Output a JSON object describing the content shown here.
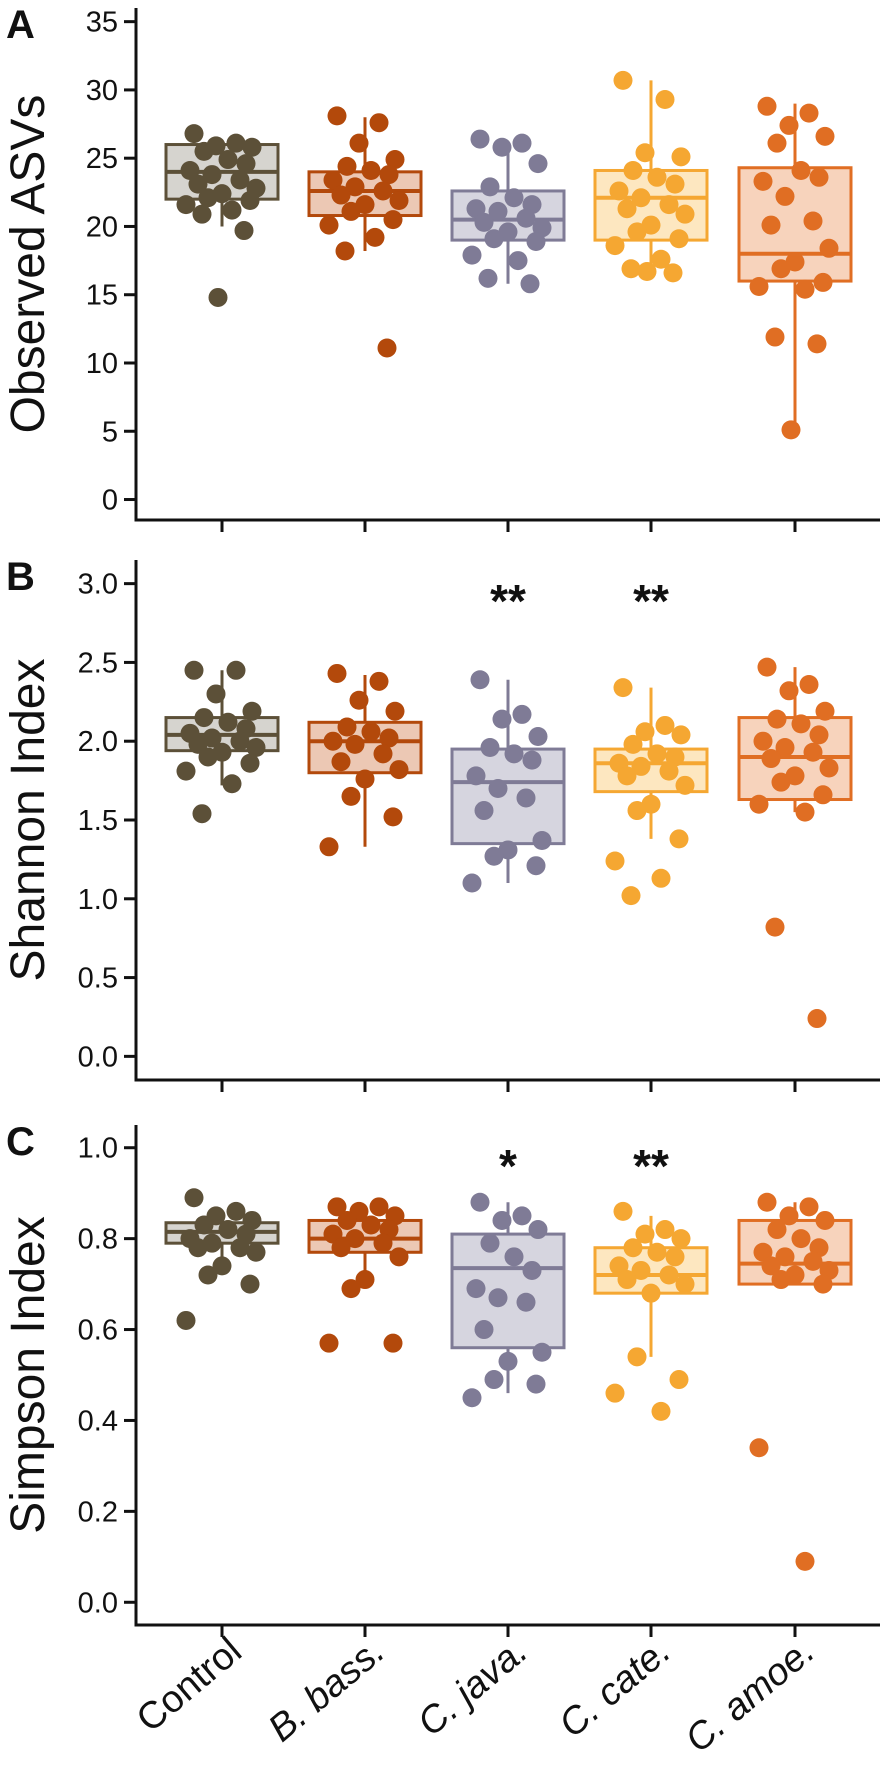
{
  "categories": [
    "Control",
    "B. bass.",
    "C. java.",
    "C. cate.",
    "C. amoe."
  ],
  "italic_categories": [
    false,
    true,
    true,
    true,
    true
  ],
  "colors": [
    "#5c5038",
    "#b3490b",
    "#7f7b96",
    "#f5a732",
    "#e06e23"
  ],
  "fills": [
    "#d6d4cf",
    "#ecc8b4",
    "#d6d5df",
    "#fde7c0",
    "#f7d3bc"
  ],
  "chart_data": [
    {
      "type": "box",
      "panel": "A",
      "ylabel": "Observed ASVs",
      "ylim": [
        -1.5,
        36
      ],
      "yticks": [
        0,
        5,
        10,
        15,
        20,
        25,
        30,
        35
      ],
      "ytick_labels": [
        "0",
        "5",
        "10",
        "15",
        "20",
        "25",
        "30",
        "35"
      ],
      "significance": [
        "",
        "",
        "",
        "",
        ""
      ],
      "boxes": [
        {
          "q1": 22,
          "median": 24,
          "q3": 26,
          "whisker_low": 20,
          "whisker_high": 26
        },
        {
          "q1": 20.8,
          "median": 22.6,
          "q3": 24,
          "whisker_low": 18.2,
          "whisker_high": 28
        },
        {
          "q1": 19,
          "median": 20.5,
          "q3": 22.6,
          "whisker_low": 15.8,
          "whisker_high": 26.2
        },
        {
          "q1": 19,
          "median": 22.1,
          "q3": 24.1,
          "whisker_low": 16.7,
          "whisker_high": 30.7
        },
        {
          "q1": 16,
          "median": 18,
          "q3": 24.3,
          "whisker_low": 5,
          "whisker_high": 29
        }
      ],
      "points": [
        [
          26.8,
          26.1,
          25.9,
          25.8,
          25.5,
          24.9,
          24.6,
          24.1,
          23.8,
          23.4,
          23.1,
          22.8,
          22.4,
          22.1,
          21.9,
          21.6,
          21.2,
          20.9,
          19.7,
          14.8
        ],
        [
          28.1,
          27.6,
          26.1,
          24.9,
          24.4,
          24.1,
          23.8,
          23.4,
          22.9,
          22.6,
          22.3,
          21.9,
          21.6,
          21.1,
          20.5,
          20.1,
          19.2,
          18.2,
          11.1
        ],
        [
          26.4,
          26.1,
          25.8,
          24.6,
          22.9,
          22.1,
          21.6,
          21.3,
          21.1,
          20.6,
          20.3,
          19.9,
          19.6,
          19.1,
          18.9,
          17.9,
          17.5,
          16.2,
          15.8
        ],
        [
          30.7,
          29.3,
          25.4,
          25.1,
          24.1,
          23.6,
          23.1,
          22.6,
          22.1,
          21.6,
          21.3,
          20.9,
          20.1,
          19.6,
          19.1,
          18.6,
          17.6,
          16.9,
          16.6,
          16.7
        ],
        [
          28.8,
          28.3,
          27.4,
          26.6,
          26.1,
          24.1,
          23.6,
          23.3,
          22.2,
          20.4,
          20.1,
          18.4,
          17.4,
          16.9,
          15.9,
          15.6,
          15.4,
          11.9,
          11.4,
          5.1
        ]
      ]
    },
    {
      "type": "box",
      "panel": "B",
      "ylabel": "Shannon Index",
      "ylim": [
        -0.15,
        3.15
      ],
      "yticks": [
        0,
        0.5,
        1,
        1.5,
        2,
        2.5,
        3
      ],
      "ytick_labels": [
        "0.0",
        "0.5",
        "1.0",
        "1.5",
        "2.0",
        "2.5",
        "3.0"
      ],
      "significance": [
        "",
        "",
        "**",
        "**",
        ""
      ],
      "boxes": [
        {
          "q1": 1.94,
          "median": 2.04,
          "q3": 2.15,
          "whisker_low": 1.72,
          "whisker_high": 2.45
        },
        {
          "q1": 1.8,
          "median": 2,
          "q3": 2.12,
          "whisker_low": 1.33,
          "whisker_high": 2.42
        },
        {
          "q1": 1.35,
          "median": 1.74,
          "q3": 1.95,
          "whisker_low": 1.1,
          "whisker_high": 2.39
        },
        {
          "q1": 1.68,
          "median": 1.86,
          "q3": 1.95,
          "whisker_low": 1.38,
          "whisker_high": 2.34
        },
        {
          "q1": 1.63,
          "median": 1.9,
          "q3": 2.15,
          "whisker_low": 1.55,
          "whisker_high": 2.47
        }
      ],
      "points": [
        [
          2.45,
          2.45,
          2.3,
          2.19,
          2.15,
          2.12,
          2.08,
          2.05,
          2.02,
          2,
          1.98,
          1.96,
          1.93,
          1.9,
          1.86,
          1.81,
          1.73,
          1.54
        ],
        [
          2.43,
          2.38,
          2.26,
          2.19,
          2.09,
          2.06,
          2.02,
          2,
          1.98,
          1.92,
          1.87,
          1.82,
          1.76,
          1.65,
          1.52,
          1.33
        ],
        [
          2.39,
          2.17,
          2.14,
          2.03,
          1.96,
          1.92,
          1.88,
          1.78,
          1.7,
          1.64,
          1.56,
          1.37,
          1.31,
          1.27,
          1.21,
          1.1
        ],
        [
          2.34,
          2.1,
          2.06,
          2.04,
          1.98,
          1.92,
          1.9,
          1.86,
          1.84,
          1.81,
          1.78,
          1.72,
          1.6,
          1.56,
          1.38,
          1.24,
          1.13,
          1.02
        ],
        [
          2.47,
          2.36,
          2.32,
          2.19,
          2.14,
          2.11,
          2.04,
          2,
          1.96,
          1.93,
          1.89,
          1.83,
          1.78,
          1.74,
          1.66,
          1.6,
          1.55,
          0.82,
          0.24
        ]
      ]
    },
    {
      "type": "box",
      "panel": "C",
      "ylabel": "Simpson Index",
      "ylim": [
        -0.05,
        1.05
      ],
      "yticks": [
        0,
        0.2,
        0.4,
        0.6,
        0.8,
        1
      ],
      "ytick_labels": [
        "0.0",
        "0.2",
        "0.4",
        "0.6",
        "0.8",
        "1.0"
      ],
      "significance": [
        "",
        "",
        "*",
        "**",
        ""
      ],
      "boxes": [
        {
          "q1": 0.79,
          "median": 0.815,
          "q3": 0.835,
          "whisker_low": 0.76,
          "whisker_high": 0.86
        },
        {
          "q1": 0.77,
          "median": 0.8,
          "q3": 0.84,
          "whisker_low": 0.71,
          "whisker_high": 0.87
        },
        {
          "q1": 0.56,
          "median": 0.735,
          "q3": 0.81,
          "whisker_low": 0.46,
          "whisker_high": 0.88
        },
        {
          "q1": 0.68,
          "median": 0.72,
          "q3": 0.78,
          "whisker_low": 0.54,
          "whisker_high": 0.85
        },
        {
          "q1": 0.7,
          "median": 0.745,
          "q3": 0.84,
          "whisker_low": 0.7,
          "whisker_high": 0.88
        }
      ],
      "points": [
        [
          0.89,
          0.86,
          0.85,
          0.84,
          0.83,
          0.82,
          0.81,
          0.8,
          0.79,
          0.78,
          0.78,
          0.77,
          0.74,
          0.72,
          0.7,
          0.62
        ],
        [
          0.87,
          0.87,
          0.86,
          0.85,
          0.84,
          0.83,
          0.82,
          0.81,
          0.8,
          0.79,
          0.78,
          0.76,
          0.71,
          0.69,
          0.57,
          0.57
        ],
        [
          0.88,
          0.85,
          0.84,
          0.82,
          0.79,
          0.76,
          0.73,
          0.69,
          0.67,
          0.66,
          0.6,
          0.55,
          0.53,
          0.49,
          0.48,
          0.45
        ],
        [
          0.86,
          0.82,
          0.81,
          0.8,
          0.78,
          0.77,
          0.76,
          0.74,
          0.73,
          0.72,
          0.71,
          0.7,
          0.68,
          0.54,
          0.49,
          0.46,
          0.42
        ],
        [
          0.88,
          0.87,
          0.85,
          0.84,
          0.82,
          0.8,
          0.78,
          0.77,
          0.76,
          0.75,
          0.74,
          0.73,
          0.72,
          0.71,
          0.7,
          0.34,
          0.09
        ]
      ]
    }
  ]
}
